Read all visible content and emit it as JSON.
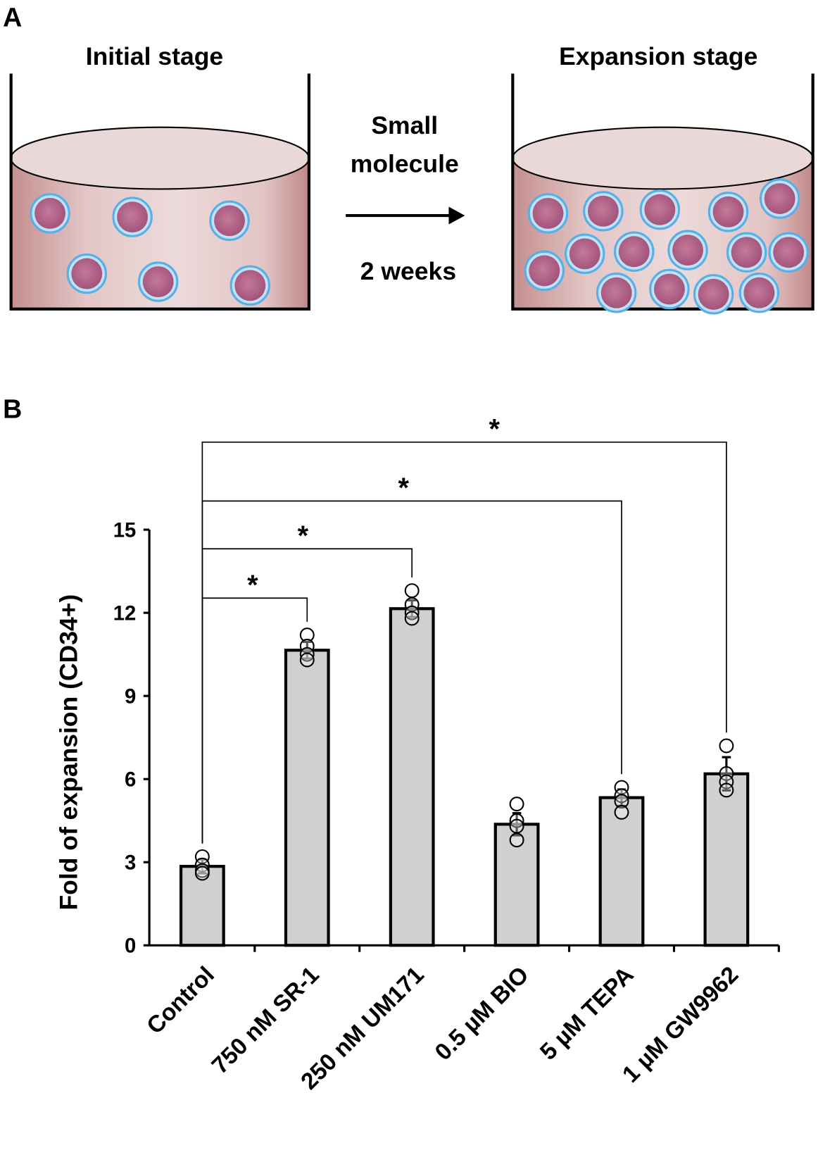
{
  "panel_a": {
    "label": "A",
    "initial_title": "Initial stage",
    "expansion_title": "Expansion stage",
    "treatment_line1": "Small",
    "treatment_line2": "molecule",
    "duration": "2 weeks",
    "colors": {
      "medium": "#d9aeae",
      "medium_top": "#ecdcdc",
      "cell_body": "#b0607f",
      "cell_membrane": "#6fb8e8"
    }
  },
  "panel_b": {
    "label": "B"
  },
  "chart_data": {
    "type": "bar",
    "title": "",
    "xlabel": "",
    "ylabel": "Fold of expansion (CD34+)",
    "ylim": [
      0,
      15
    ],
    "yticks": [
      0,
      3,
      6,
      9,
      12,
      15
    ],
    "grid": false,
    "bar_color": "#d0d0d0",
    "categories": [
      "Control",
      "750 nM SR-1",
      "250 nM UM171",
      "0.5 µM BIO",
      "5 µM TEPA",
      "1 µM GW9962"
    ],
    "values": [
      2.85,
      10.65,
      12.15,
      4.37,
      5.33,
      6.19
    ],
    "error": [
      0.25,
      0.3,
      0.3,
      0.4,
      0.3,
      0.6
    ],
    "points": [
      [
        3.2,
        2.9,
        2.7,
        2.6
      ],
      [
        11.2,
        10.8,
        10.5,
        10.3
      ],
      [
        12.8,
        12.3,
        12.0,
        11.8
      ],
      [
        5.1,
        4.5,
        4.3,
        3.8
      ],
      [
        5.7,
        5.4,
        5.2,
        4.8
      ],
      [
        7.2,
        6.2,
        5.9,
        5.6
      ]
    ],
    "significance": [
      {
        "from": "Control",
        "to": "750 nM SR-1",
        "label": "*"
      },
      {
        "from": "Control",
        "to": "250 nM UM171",
        "label": "*"
      },
      {
        "from": "Control",
        "to": "5 µM TEPA",
        "label": "*"
      },
      {
        "from": "Control",
        "to": "1 µM GW9962",
        "label": "*"
      }
    ]
  }
}
